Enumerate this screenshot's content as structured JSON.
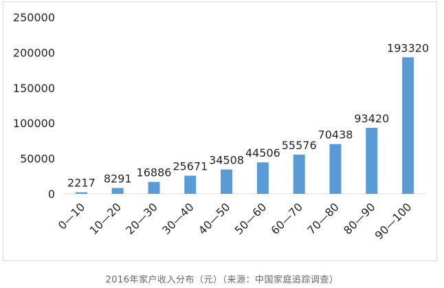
{
  "caption": "2016年家户收入分布（元）（来源：中国家庭追踪调查）",
  "chart_data": {
    "type": "bar",
    "categories": [
      "0—10",
      "10—20",
      "20—30",
      "30—40",
      "40—50",
      "50—60",
      "60—70",
      "70—80",
      "80—90",
      "90—100"
    ],
    "values": [
      2217,
      8291,
      16886,
      25671,
      34508,
      44506,
      55576,
      70438,
      93420,
      193320
    ],
    "data_labels": [
      "2217",
      "8291",
      "16886",
      "25671",
      "34508",
      "44506",
      "55576",
      "70438",
      "93420",
      "193320"
    ],
    "yticks": [
      0,
      50000,
      100000,
      150000,
      200000,
      250000
    ],
    "ylim": [
      0,
      250000
    ],
    "title": "",
    "xlabel": "",
    "ylabel": "",
    "grid": false,
    "legend": "none",
    "colors": {
      "bar": "#5b9bd5",
      "axis": "#d9d9d9",
      "text": "#222222"
    }
  }
}
